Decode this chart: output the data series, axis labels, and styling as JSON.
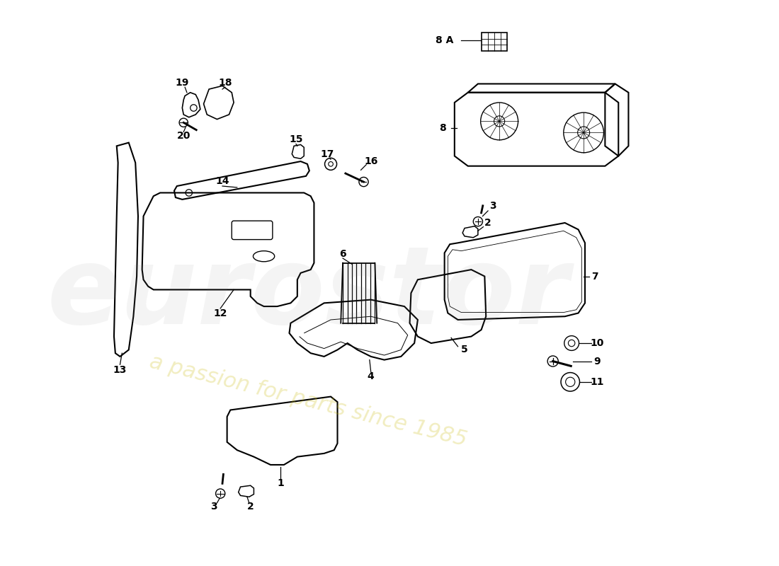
{
  "bg_color": "#ffffff",
  "line_color": "#000000",
  "watermark_color": "#aaaaaa",
  "watermark_yellow": "#c8b800",
  "label_color": "#000000"
}
